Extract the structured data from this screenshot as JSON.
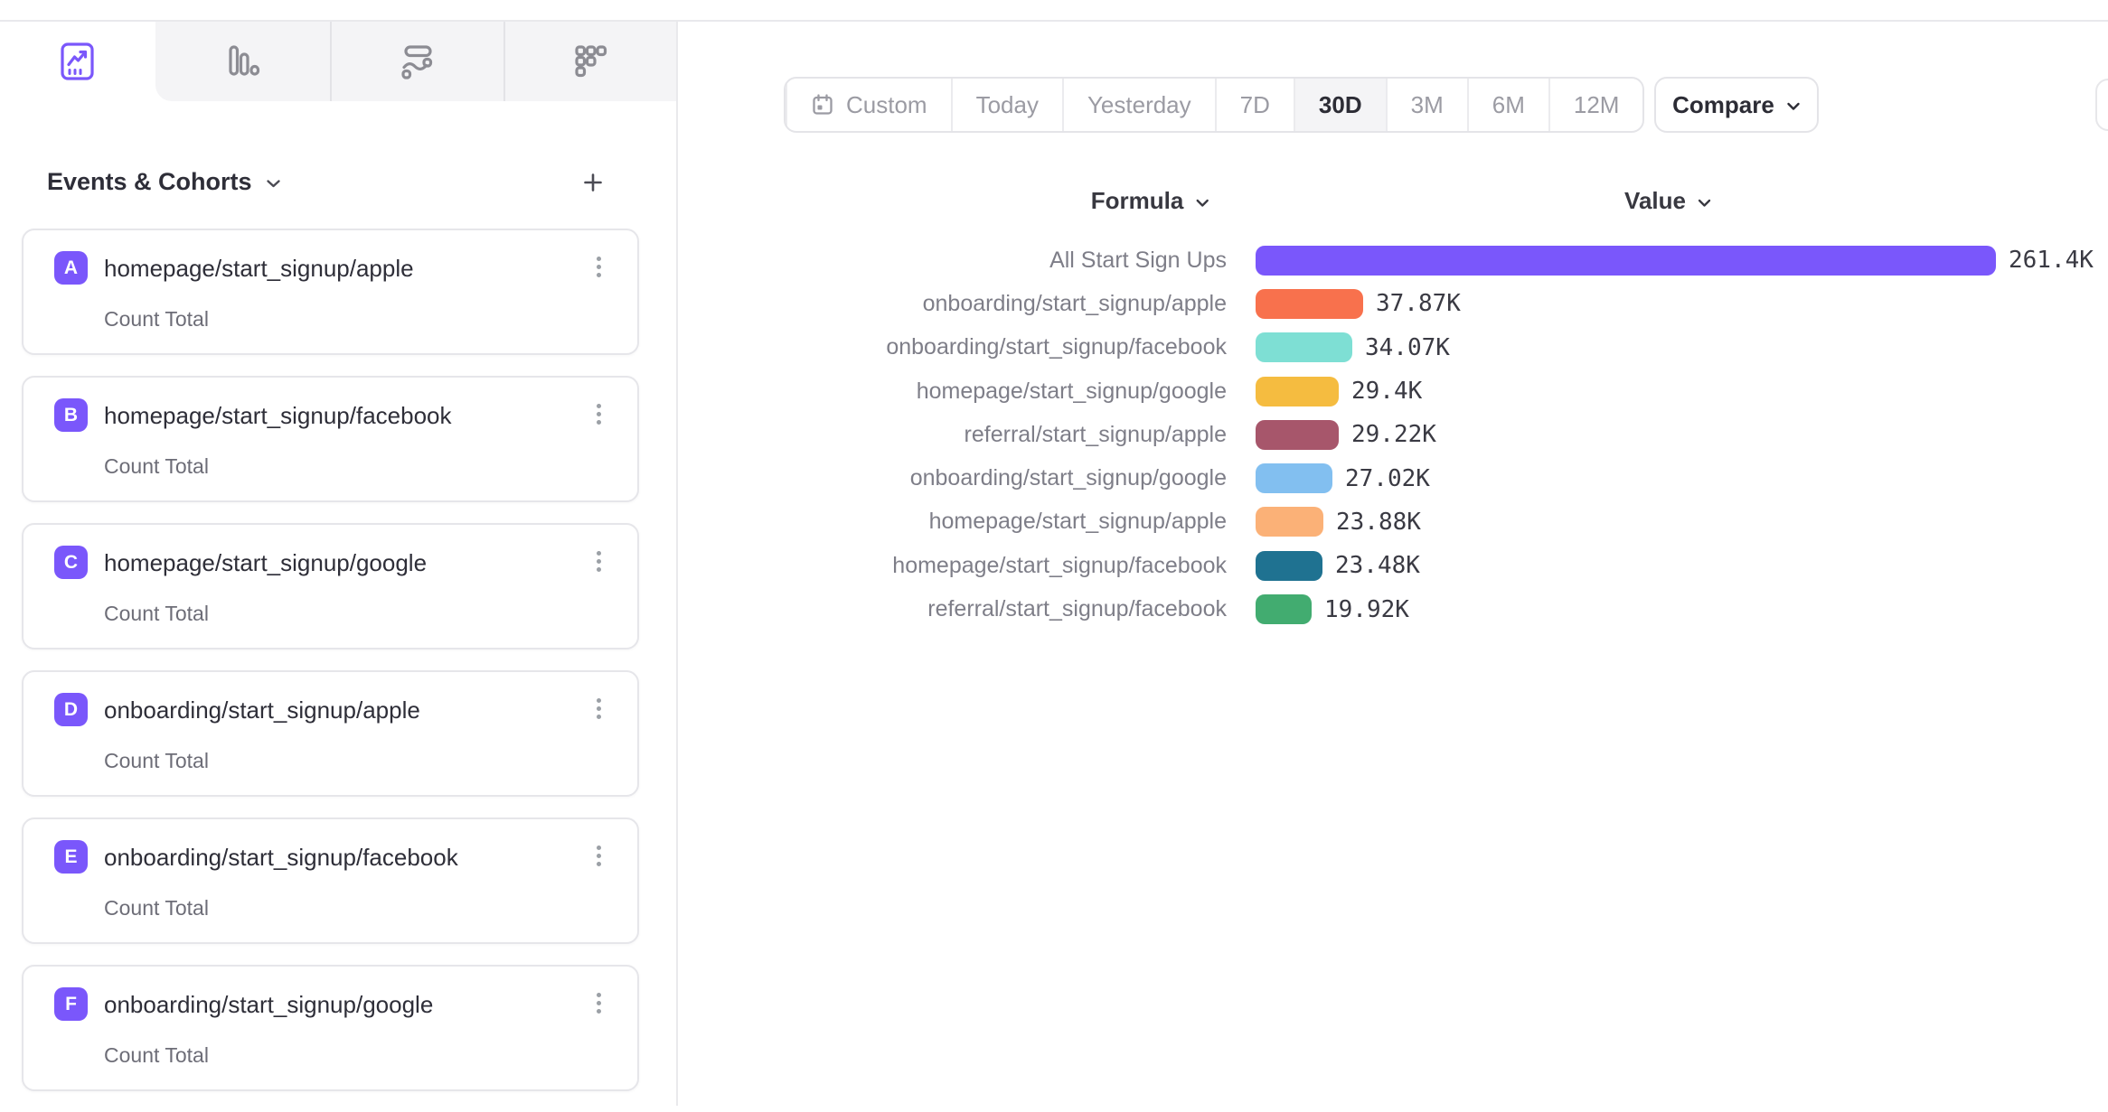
{
  "theme": {
    "accent_purple": "#7A57FB",
    "band_bg": "#f4f4f6",
    "border": "#e4e4e8",
    "text_dark": "#2e2e38",
    "text_gray": "#7e7e88",
    "text_muted": "#9b9ba3"
  },
  "tabs": [
    {
      "icon": "line-chart-icon",
      "active": true
    },
    {
      "icon": "bar-chart-icon",
      "active": false
    },
    {
      "icon": "flows-icon",
      "active": false
    },
    {
      "icon": "retention-icon",
      "active": false
    }
  ],
  "sidebar": {
    "title": "Events & Cohorts",
    "add_label": "+",
    "cards": [
      {
        "letter": "A",
        "title": "homepage/start_signup/apple",
        "subtitle": "Count Total"
      },
      {
        "letter": "B",
        "title": "homepage/start_signup/facebook",
        "subtitle": "Count Total"
      },
      {
        "letter": "C",
        "title": "homepage/start_signup/google",
        "subtitle": "Count Total"
      },
      {
        "letter": "D",
        "title": "onboarding/start_signup/apple",
        "subtitle": "Count Total"
      },
      {
        "letter": "E",
        "title": "onboarding/start_signup/facebook",
        "subtitle": "Count Total"
      },
      {
        "letter": "F",
        "title": "onboarding/start_signup/google",
        "subtitle": "Count Total"
      }
    ]
  },
  "toolbar": {
    "date_ranges": [
      {
        "label": "Custom",
        "icon": "calendar-icon",
        "active": false
      },
      {
        "label": "Today",
        "active": false
      },
      {
        "label": "Yesterday",
        "active": false
      },
      {
        "label": "7D",
        "active": false
      },
      {
        "label": "30D",
        "active": true
      },
      {
        "label": "3M",
        "active": false
      },
      {
        "label": "6M",
        "active": false
      },
      {
        "label": "12M",
        "active": false
      }
    ],
    "compare_label": "Compare"
  },
  "table_headers": {
    "formula": "Formula",
    "value": "Value"
  },
  "chart_data": {
    "type": "bar",
    "orientation": "horizontal",
    "title": "",
    "categories": [
      "All Start Sign Ups",
      "onboarding/start_signup/apple",
      "onboarding/start_signup/facebook",
      "homepage/start_signup/google",
      "referral/start_signup/apple",
      "onboarding/start_signup/google",
      "homepage/start_signup/apple",
      "homepage/start_signup/facebook",
      "referral/start_signup/facebook"
    ],
    "values": [
      261400,
      37870,
      34070,
      29400,
      29220,
      27020,
      23880,
      23480,
      19920
    ],
    "value_labels": [
      "261.4K",
      "37.87K",
      "34.07K",
      "29.4K",
      "29.22K",
      "27.02K",
      "23.88K",
      "23.48K",
      "19.92K"
    ],
    "colors": [
      "#7A57FB",
      "#F8714D",
      "#7EDFD4",
      "#F5BC40",
      "#A7566B",
      "#82BFF0",
      "#FBB177",
      "#1F7291",
      "#42AC70"
    ],
    "xlim": [
      0,
      261400
    ],
    "grid": false,
    "legend": false
  }
}
